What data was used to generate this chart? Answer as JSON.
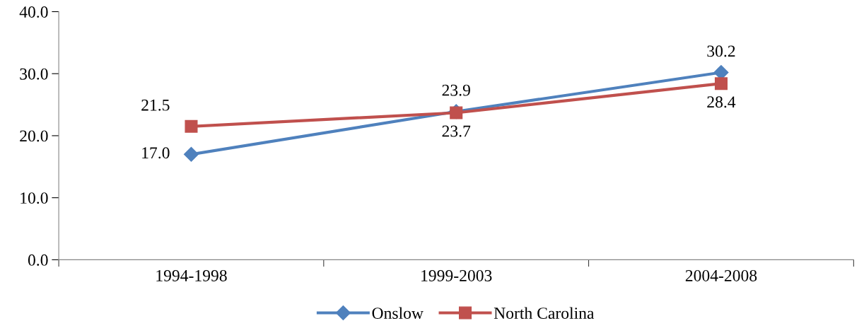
{
  "chart_data": {
    "type": "line",
    "categories": [
      "1994-1998",
      "1999-2003",
      "2004-2008"
    ],
    "series": [
      {
        "name": "Onslow",
        "color": "#4f81bd",
        "marker": "diamond",
        "values": [
          17.0,
          23.9,
          30.2
        ],
        "value_labels": [
          "17.0",
          "23.9",
          "30.2"
        ]
      },
      {
        "name": "North Carolina",
        "color": "#c0504d",
        "marker": "square",
        "values": [
          21.5,
          23.7,
          28.4
        ],
        "value_labels": [
          "21.5",
          "23.7",
          "28.4"
        ]
      }
    ],
    "ylim": [
      0,
      40
    ],
    "yticks": [
      {
        "value": 0,
        "label": "0.0"
      },
      {
        "value": 10,
        "label": "10.0"
      },
      {
        "value": 20,
        "label": "20.0"
      },
      {
        "value": 30,
        "label": "30.0"
      },
      {
        "value": 40,
        "label": "40.0"
      }
    ],
    "grid": false,
    "legend": "bottom",
    "line_style": "solid"
  }
}
